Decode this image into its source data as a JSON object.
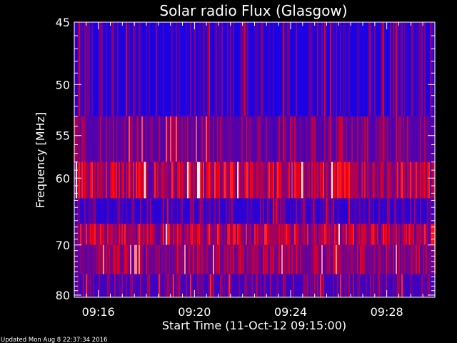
{
  "chart_data": {
    "type": "heatmap",
    "title": "Solar radio Flux (Glasgow)",
    "xlabel": "Start Time (11-Oct-12 09:15:00)",
    "ylabel": "Frequency [MHz]",
    "x_tick_labels": [
      "09:16",
      "09:20",
      "09:24",
      "09:28"
    ],
    "x_tick_minutes": [
      1,
      5,
      9,
      13
    ],
    "x_range_minutes": [
      0,
      15
    ],
    "y_tick_labels": [
      "45",
      "50",
      "55",
      "60",
      "70",
      "80"
    ],
    "y_tick_values": [
      45,
      50,
      55,
      60,
      70,
      80
    ],
    "y_range": [
      45,
      80.5
    ],
    "y_scale": "reciprocal (1/f), frequency increasing downward",
    "colormap": [
      "#0000ff",
      "#ff0000",
      "#ffffff"
    ],
    "bands": [
      {
        "from": 45,
        "to": 53,
        "level": 0.1
      },
      {
        "from": 53,
        "to": 58,
        "level": 0.3
      },
      {
        "from": 58,
        "to": 62.7,
        "level": 0.62
      },
      {
        "from": 62.7,
        "to": 66.5,
        "level": 0.15
      },
      {
        "from": 66.5,
        "to": 70,
        "level": 0.58
      },
      {
        "from": 70,
        "to": 75.5,
        "level": 0.42
      },
      {
        "from": 75.5,
        "to": 80.5,
        "level": 0.22
      }
    ]
  },
  "footer": "Updated Mon Aug  8 22:37:34 2016"
}
